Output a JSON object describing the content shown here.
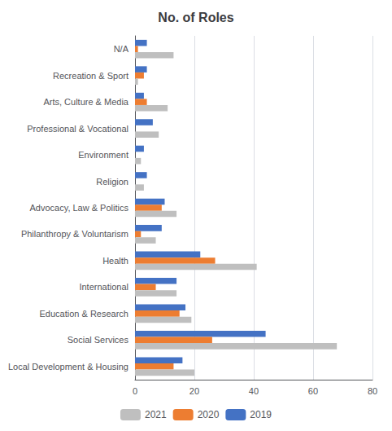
{
  "chart_data": {
    "type": "bar",
    "orientation": "horizontal",
    "title": "No. of Roles",
    "categories": [
      "Local Development & Housing",
      "Social Services",
      "Education & Research",
      "International",
      "Health",
      "Philanthropy & Voluntarism",
      "Advocacy, Law & Politics",
      "Religion",
      "Environment",
      "Professional & Vocational",
      "Arts, Culture & Media",
      "Recreation & Sport",
      "N/A"
    ],
    "series": [
      {
        "name": "2021",
        "color": "#bfbfbf",
        "values": [
          20,
          68,
          19,
          14,
          41,
          7,
          14,
          3,
          2,
          8,
          11,
          1,
          13
        ]
      },
      {
        "name": "2020",
        "color": "#ed7d31",
        "values": [
          13,
          26,
          15,
          7,
          27,
          2,
          9,
          0,
          0,
          0,
          4,
          3,
          1
        ]
      },
      {
        "name": "2019",
        "color": "#4472c4",
        "values": [
          16,
          44,
          17,
          14,
          22,
          9,
          10,
          4,
          3,
          6,
          3,
          4,
          4
        ]
      }
    ],
    "xlim": [
      0,
      80
    ],
    "xticks": [
      0,
      20,
      40,
      60,
      80
    ],
    "grid": true,
    "legend": "bottom"
  }
}
